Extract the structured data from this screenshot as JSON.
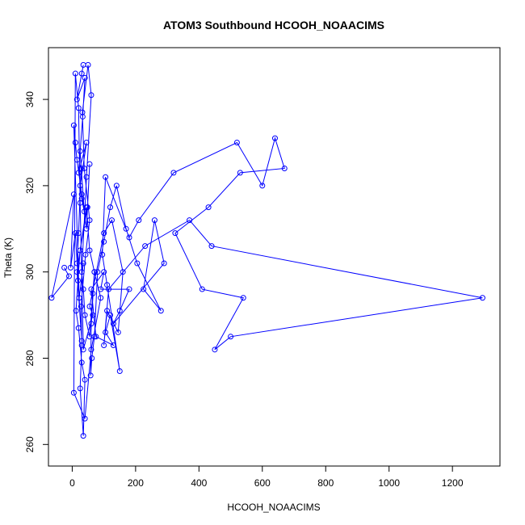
{
  "chart_data": {
    "type": "line",
    "title": "ATOM3 Southbound HCOOH_NOAACIMS",
    "xlabel": "HCOOH_NOAACIMS",
    "ylabel": "Theta (K)",
    "xlim": [
      -75,
      1350
    ],
    "ylim": [
      255,
      352
    ],
    "x_ticks": [
      0,
      200,
      400,
      600,
      800,
      1000,
      1200
    ],
    "y_ticks": [
      260,
      280,
      300,
      320,
      340
    ],
    "x_tick_labels": [
      "0",
      "200",
      "400",
      "600",
      "800",
      "1000",
      "1200"
    ],
    "y_tick_labels": [
      "260",
      "280",
      "300",
      "320",
      "340"
    ],
    "grid": false,
    "series": [
      {
        "color": "#0000ff",
        "marker": "open-circle",
        "x": [
          35,
          30,
          15,
          40,
          33,
          20,
          45,
          25,
          30,
          38,
          25,
          28,
          20,
          15,
          35,
          22,
          5,
          10,
          15,
          30,
          45,
          55,
          48,
          25,
          18,
          12,
          20,
          30,
          40,
          35,
          25,
          30,
          28,
          42,
          55,
          38,
          32,
          50,
          60,
          45,
          30,
          35,
          40,
          55,
          65,
          70,
          60,
          58,
          62,
          70,
          80,
          100,
          120,
          140,
          170,
          205,
          280,
          225,
          260,
          290,
          130,
          150,
          180,
          90,
          100,
          60,
          75,
          130,
          105,
          120,
          150,
          110,
          95,
          105,
          180,
          210,
          320,
          520,
          600,
          640,
          670,
          530,
          430,
          325,
          410,
          540,
          450,
          500,
          1295,
          440,
          370,
          230,
          115,
          100,
          110,
          145,
          160,
          125,
          100,
          55,
          65,
          35,
          25,
          20,
          10,
          5,
          40,
          60,
          90,
          70,
          55,
          45,
          15,
          30,
          10,
          -5,
          5,
          -65,
          -10,
          -25
        ],
        "y": [
          348,
          346,
          340,
          345,
          336,
          323,
          330,
          320,
          317,
          314,
          328,
          324,
          309,
          302,
          302,
          294,
          334,
          330,
          326,
          318,
          310,
          325,
          315,
          305,
          298,
          291,
          287,
          279,
          275,
          262,
          273,
          283,
          292,
          304,
          312,
          324,
          337,
          348,
          341,
          322,
          300,
          296,
          290,
          285,
          295,
          300,
          288,
          276,
          280,
          285,
          300,
          307,
          315,
          320,
          310,
          302,
          291,
          296,
          312,
          302,
          288,
          291,
          296,
          296,
          300,
          296,
          285,
          283,
          286,
          290,
          277,
          297,
          304,
          322,
          308,
          312,
          323,
          330,
          320,
          331,
          324,
          323,
          315,
          309,
          296,
          294,
          282,
          285,
          294,
          306,
          312,
          306,
          296,
          283,
          291,
          286,
          300,
          312,
          309,
          292,
          290,
          282,
          316,
          338,
          346,
          272,
          266,
          282,
          294,
          300,
          305,
          315,
          300,
          284,
          309,
          301,
          318,
          294,
          299,
          301
        ]
      }
    ]
  }
}
